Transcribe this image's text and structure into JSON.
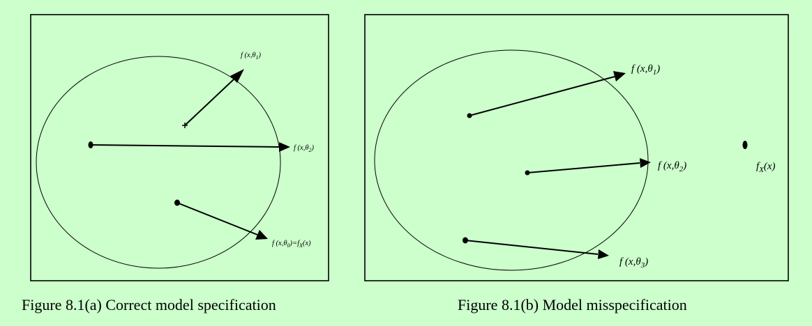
{
  "figures": [
    {
      "caption": "Figure 8.1(a) Correct model specification",
      "labels": [
        {
          "prefix": "f (x,",
          "theta": "θ",
          "sub": "1",
          "suffix": ")"
        },
        {
          "prefix": "f (x,",
          "theta": "θ",
          "sub": "2",
          "suffix": ")"
        },
        {
          "prefix": "f (x,",
          "theta": "θ",
          "sub": "0",
          "suffix": ")=f",
          "sub2": "X",
          "suffix2": "(x)"
        }
      ]
    },
    {
      "caption": "Figure 8.1(b) Model misspecification",
      "labels": [
        {
          "prefix": "f (x,",
          "theta": "θ",
          "sub": "1",
          "suffix": ")"
        },
        {
          "prefix": "f (x,",
          "theta": "θ",
          "sub": "2",
          "suffix": ")"
        },
        {
          "prefix": "f (x,",
          "theta": "θ",
          "sub": "3",
          "suffix": ")"
        },
        {
          "prefix": "f",
          "sub": "X",
          "suffix": "(x)"
        }
      ]
    }
  ],
  "colors": {
    "background": "#ccffcc",
    "ink": "#000000"
  }
}
